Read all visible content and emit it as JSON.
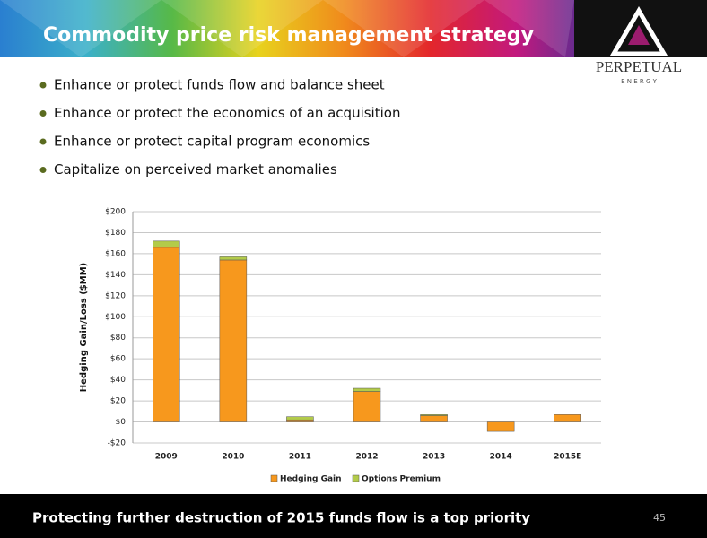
{
  "header": {
    "title": "Commodity price risk management strategy"
  },
  "logo": {
    "name": "PERPETUAL",
    "sub": "E N E R G Y"
  },
  "bullets": [
    "Enhance or protect funds flow and balance sheet",
    "Enhance or protect the economics of an acquisition",
    "Enhance or protect capital program economics",
    "Capitalize on perceived market anomalies"
  ],
  "chart_data": {
    "type": "bar",
    "stacked": true,
    "y_label": "Hedging Gain/Loss ($MM)",
    "categories": [
      "2009",
      "2010",
      "2011",
      "2012",
      "2013",
      "2014",
      "2015E"
    ],
    "series": [
      {
        "name": "Hedging Gain",
        "color": "#f7981d",
        "values": [
          166,
          154,
          2,
          29,
          6,
          -9,
          7
        ]
      },
      {
        "name": "Options Premium",
        "color": "#b3cb4a",
        "values": [
          6,
          3,
          3,
          3,
          1,
          0,
          0
        ]
      }
    ],
    "ylim": [
      -20,
      200
    ],
    "yticks": [
      {
        "value": -20,
        "label": "-$20"
      },
      {
        "value": 0,
        "label": "$0"
      },
      {
        "value": 20,
        "label": "$20"
      },
      {
        "value": 40,
        "label": "$40"
      },
      {
        "value": 60,
        "label": "$60"
      },
      {
        "value": 80,
        "label": "$80"
      },
      {
        "value": 100,
        "label": "$100"
      },
      {
        "value": 120,
        "label": "$120"
      },
      {
        "value": 140,
        "label": "$140"
      },
      {
        "value": 160,
        "label": "$160"
      },
      {
        "value": 180,
        "label": "$180"
      },
      {
        "value": 200,
        "label": "$200"
      }
    ],
    "grid": true
  },
  "footer": {
    "text": "Protecting further destruction of 2015 funds flow  is a top priority",
    "page_number": "45"
  }
}
